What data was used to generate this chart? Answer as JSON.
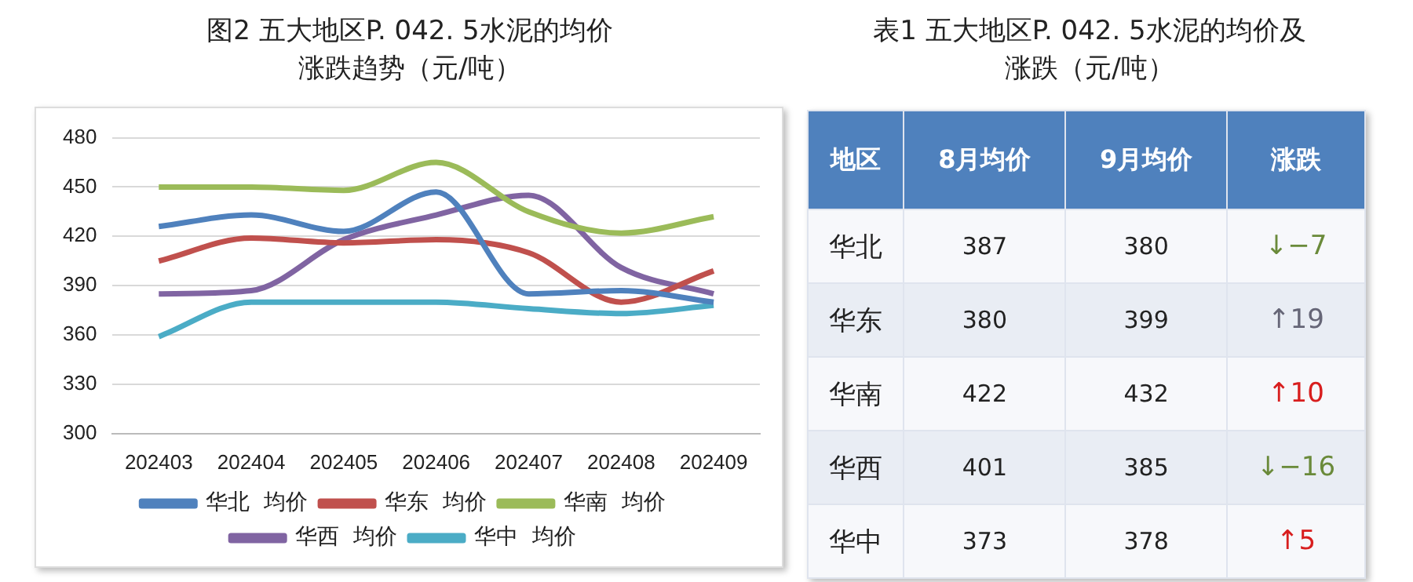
{
  "chart_data": [
    {
      "type": "line",
      "title": "图2  五大地区P. 042. 5水泥的均价涨跌趋势（元/吨）",
      "categories": [
        "202403",
        "202404",
        "202405",
        "202406",
        "202407",
        "202408",
        "202409"
      ],
      "series": [
        {
          "name": "华北  均价",
          "color": "#4f81bd",
          "values": [
            426,
            433,
            423,
            447,
            385,
            387,
            380
          ]
        },
        {
          "name": "华东  均价",
          "color": "#c0504d",
          "values": [
            405,
            419,
            416,
            418,
            410,
            380,
            399
          ]
        },
        {
          "name": "华南  均价",
          "color": "#9bbb59",
          "values": [
            450,
            450,
            448,
            465,
            435,
            422,
            432
          ]
        },
        {
          "name": "华西  均价",
          "color": "#8064a2",
          "values": [
            385,
            387,
            418,
            433,
            445,
            401,
            385
          ]
        },
        {
          "name": "华中  均价",
          "color": "#4bacc6",
          "values": [
            359,
            380,
            380,
            380,
            376,
            373,
            378
          ]
        }
      ],
      "ylim": [
        300,
        480
      ],
      "yticks": [
        300,
        330,
        360,
        390,
        420,
        450,
        480
      ],
      "grid": "y",
      "legend": "bottom"
    },
    {
      "type": "heatmap",
      "title": "表1  五大地区P. 042. 5水泥的均价及涨跌（元/吨）",
      "ylabel": "地区",
      "categories": [
        "8月均价",
        "9月均价",
        "涨跌"
      ],
      "y_categories": [
        "华北",
        "华东",
        "华南",
        "华西",
        "华中"
      ],
      "cells": [
        [
          387,
          380,
          -7
        ],
        [
          380,
          399,
          19
        ],
        [
          422,
          432,
          10
        ],
        [
          401,
          385,
          -16
        ],
        [
          373,
          378,
          5
        ]
      ],
      "cell_labels": [
        [
          "387",
          "380",
          "↓−7"
        ],
        [
          "380",
          "399",
          "↑19"
        ],
        [
          "422",
          "432",
          "↑10"
        ],
        [
          "401",
          "385",
          "↓−16"
        ],
        [
          "373",
          "378",
          "↑5"
        ]
      ]
    }
  ]
}
